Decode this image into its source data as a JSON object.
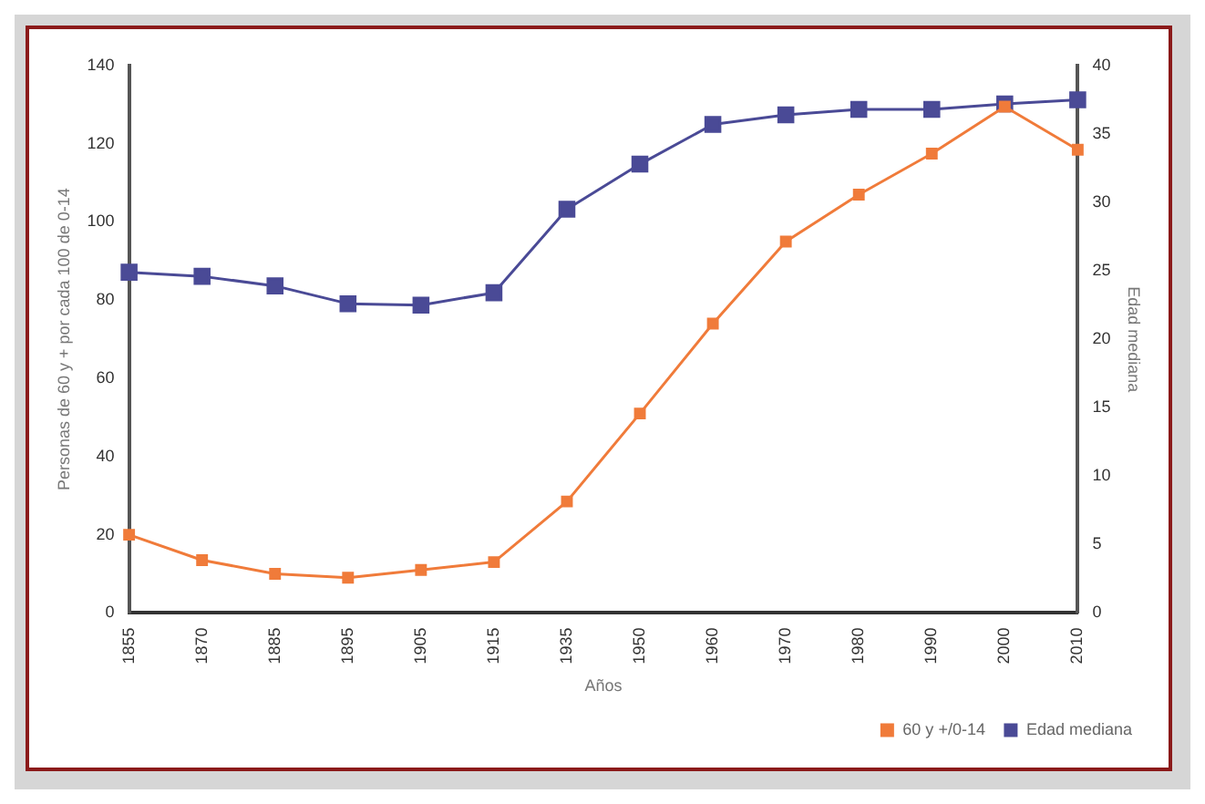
{
  "chart_data": {
    "type": "line",
    "xlabel": "Años",
    "ylabel": "Personas de 60 y + por cada 100 de 0-14",
    "y2label": "Edad mediana",
    "categories": [
      "1855",
      "1870",
      "1885",
      "1895",
      "1905",
      "1915",
      "1935",
      "1950",
      "1960",
      "1970",
      "1980",
      "1990",
      "2000",
      "2010"
    ],
    "series": [
      {
        "name": "60 y +/0-14",
        "color": "#f07b3a",
        "values": [
          20,
          13.5,
          10,
          9,
          11,
          13,
          28.5,
          51,
          74,
          95,
          107,
          117.5,
          129.5,
          118.5
        ]
      },
      {
        "name": "Edad mediana",
        "color": "#4a4a96",
        "axis": "y2",
        "values": [
          24.9,
          24.6,
          23.9,
          22.6,
          22.5,
          23.4,
          29.5,
          32.8,
          35.7,
          36.4,
          36.8,
          36.8,
          37.2,
          37.5
        ]
      }
    ],
    "ylim": [
      0,
      140
    ],
    "yticks": [
      0,
      20,
      40,
      60,
      80,
      100,
      120,
      140
    ],
    "y2lim": [
      0,
      40
    ],
    "y2ticks": [
      0,
      5,
      10,
      15,
      20,
      25,
      30,
      35,
      40
    ],
    "grid": false,
    "legend": "bottom right",
    "marker": "square",
    "line_style": "solid"
  }
}
